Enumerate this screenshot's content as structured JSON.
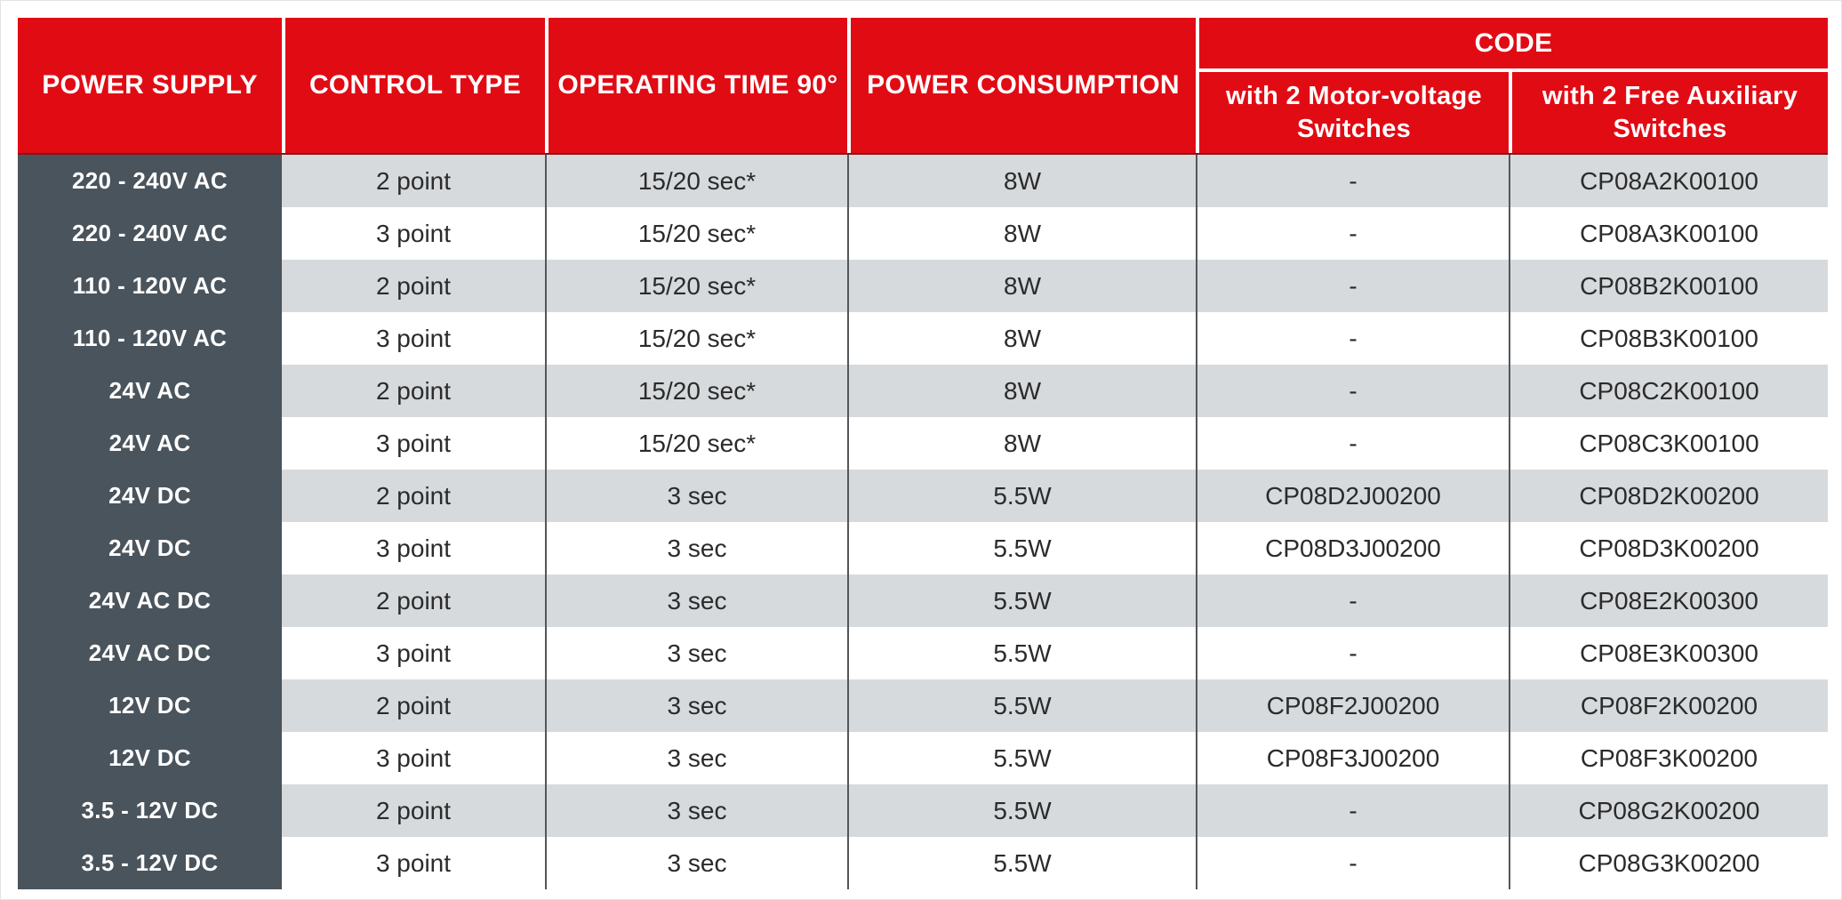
{
  "colors": {
    "header_red": "#E10B14",
    "power_supply_column": "#4A545C",
    "row_alternate_gray": "#D6DADD",
    "column_divider": "#53565A",
    "header_underline": "#8D1116",
    "header_text": "#FFFFFF",
    "body_text": "#2B2B2B"
  },
  "table": {
    "headers": {
      "power_supply": "POWER SUPPLY",
      "control_type": "CONTROL TYPE",
      "operating_time": "OPERATING TIME 90°",
      "power_consumption": "POWER CONSUMPTION",
      "code_group": "CODE",
      "code_motor_voltage": "with 2 Motor-voltage Switches",
      "code_free_aux": "with 2 Free Auxiliary Switches"
    },
    "rows": [
      {
        "power_supply": "220 - 240V AC",
        "control_type": "2 point",
        "operating_time": "15/20 sec*",
        "power_consumption": "8W",
        "code_motor_voltage": "-",
        "code_free_aux": "CP08A2K00100"
      },
      {
        "power_supply": "220 - 240V AC",
        "control_type": "3 point",
        "operating_time": "15/20 sec*",
        "power_consumption": "8W",
        "code_motor_voltage": "-",
        "code_free_aux": "CP08A3K00100"
      },
      {
        "power_supply": "110 - 120V AC",
        "control_type": "2 point",
        "operating_time": "15/20 sec*",
        "power_consumption": "8W",
        "code_motor_voltage": "-",
        "code_free_aux": "CP08B2K00100"
      },
      {
        "power_supply": "110 - 120V AC",
        "control_type": "3 point",
        "operating_time": "15/20 sec*",
        "power_consumption": "8W",
        "code_motor_voltage": "-",
        "code_free_aux": "CP08B3K00100"
      },
      {
        "power_supply": "24V AC",
        "control_type": "2 point",
        "operating_time": "15/20 sec*",
        "power_consumption": "8W",
        "code_motor_voltage": "-",
        "code_free_aux": "CP08C2K00100"
      },
      {
        "power_supply": "24V AC",
        "control_type": "3 point",
        "operating_time": "15/20 sec*",
        "power_consumption": "8W",
        "code_motor_voltage": "-",
        "code_free_aux": "CP08C3K00100"
      },
      {
        "power_supply": "24V DC",
        "control_type": "2 point",
        "operating_time": "3 sec",
        "power_consumption": "5.5W",
        "code_motor_voltage": "CP08D2J00200",
        "code_free_aux": "CP08D2K00200"
      },
      {
        "power_supply": "24V DC",
        "control_type": "3 point",
        "operating_time": "3 sec",
        "power_consumption": "5.5W",
        "code_motor_voltage": "CP08D3J00200",
        "code_free_aux": "CP08D3K00200"
      },
      {
        "power_supply": "24V AC DC",
        "control_type": "2 point",
        "operating_time": "3 sec",
        "power_consumption": "5.5W",
        "code_motor_voltage": "-",
        "code_free_aux": "CP08E2K00300"
      },
      {
        "power_supply": "24V AC DC",
        "control_type": "3 point",
        "operating_time": "3 sec",
        "power_consumption": "5.5W",
        "code_motor_voltage": "-",
        "code_free_aux": "CP08E3K00300"
      },
      {
        "power_supply": "12V DC",
        "control_type": "2 point",
        "operating_time": "3 sec",
        "power_consumption": "5.5W",
        "code_motor_voltage": "CP08F2J00200",
        "code_free_aux": "CP08F2K00200"
      },
      {
        "power_supply": "12V DC",
        "control_type": "3 point",
        "operating_time": "3 sec",
        "power_consumption": "5.5W",
        "code_motor_voltage": "CP08F3J00200",
        "code_free_aux": "CP08F3K00200"
      },
      {
        "power_supply": "3.5 - 12V DC",
        "control_type": "2 point",
        "operating_time": "3 sec",
        "power_consumption": "5.5W",
        "code_motor_voltage": "-",
        "code_free_aux": "CP08G2K00200"
      },
      {
        "power_supply": "3.5 - 12V DC",
        "control_type": "3 point",
        "operating_time": "3 sec",
        "power_consumption": "5.5W",
        "code_motor_voltage": "-",
        "code_free_aux": "CP08G3K00200"
      }
    ]
  }
}
